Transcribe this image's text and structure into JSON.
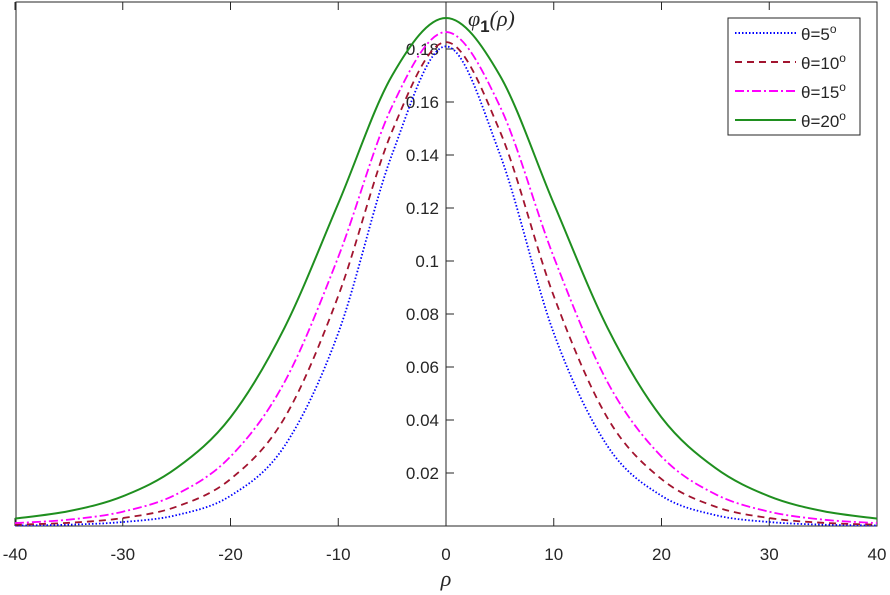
{
  "chart_data": {
    "type": "line",
    "title": "",
    "ylabel_annotation": {
      "symbol": "φ",
      "subscript": "1",
      "arg": "(ρ)"
    },
    "xlabel": "ρ",
    "xlim": [
      -40,
      40
    ],
    "ylim": [
      0,
      0.2
    ],
    "grid": false,
    "legend_placement": "top-right",
    "x_ticks": [
      "-40",
      "-30",
      "-20",
      "-10",
      "0",
      "10",
      "20",
      "30",
      "40"
    ],
    "y_ticks": [
      "0.02",
      "0.04",
      "0.06",
      "0.08",
      "0.1",
      "0.12",
      "0.14",
      "0.16",
      "0.18"
    ],
    "x": [
      -40,
      -35,
      -30,
      -25,
      -20,
      -15,
      -10,
      -5,
      0,
      5,
      10,
      15,
      20,
      25,
      30,
      35,
      40
    ],
    "series": [
      {
        "name": "θ=5°",
        "label_main": "θ=5",
        "label_sup": "o",
        "color": "#0000ff",
        "style": "dotted",
        "values": [
          0.0002,
          0.0005,
          0.0015,
          0.0041,
          0.0114,
          0.0301,
          0.0728,
          0.1403,
          0.181,
          0.1403,
          0.0728,
          0.0301,
          0.0114,
          0.0041,
          0.0015,
          0.0005,
          0.0002
        ]
      },
      {
        "name": "θ=10°",
        "label_main": "θ=10",
        "label_sup": "o",
        "color": "#a2142f",
        "style": "dashed",
        "values": [
          0.0005,
          0.0012,
          0.003,
          0.0073,
          0.0177,
          0.0407,
          0.0868,
          0.149,
          0.1826,
          0.149,
          0.0868,
          0.0407,
          0.0177,
          0.0073,
          0.003,
          0.0012,
          0.0005
        ]
      },
      {
        "name": "θ=15°",
        "label_main": "θ=15",
        "label_sup": "o",
        "color": "#ff00ff",
        "style": "dashdot",
        "values": [
          0.0011,
          0.0024,
          0.0054,
          0.012,
          0.0262,
          0.0542,
          0.1015,
          0.1584,
          0.1864,
          0.1584,
          0.1015,
          0.0542,
          0.0262,
          0.012,
          0.0054,
          0.0024,
          0.0011
        ]
      },
      {
        "name": "θ=20°",
        "label_main": "θ=20",
        "label_sup": "o",
        "color": "#1f8f1f",
        "style": "solid",
        "values": [
          0.0028,
          0.0056,
          0.0112,
          0.0219,
          0.041,
          0.0747,
          0.1217,
          0.17,
          0.1917,
          0.17,
          0.1217,
          0.0747,
          0.041,
          0.0219,
          0.0112,
          0.0056,
          0.0028
        ]
      }
    ]
  }
}
